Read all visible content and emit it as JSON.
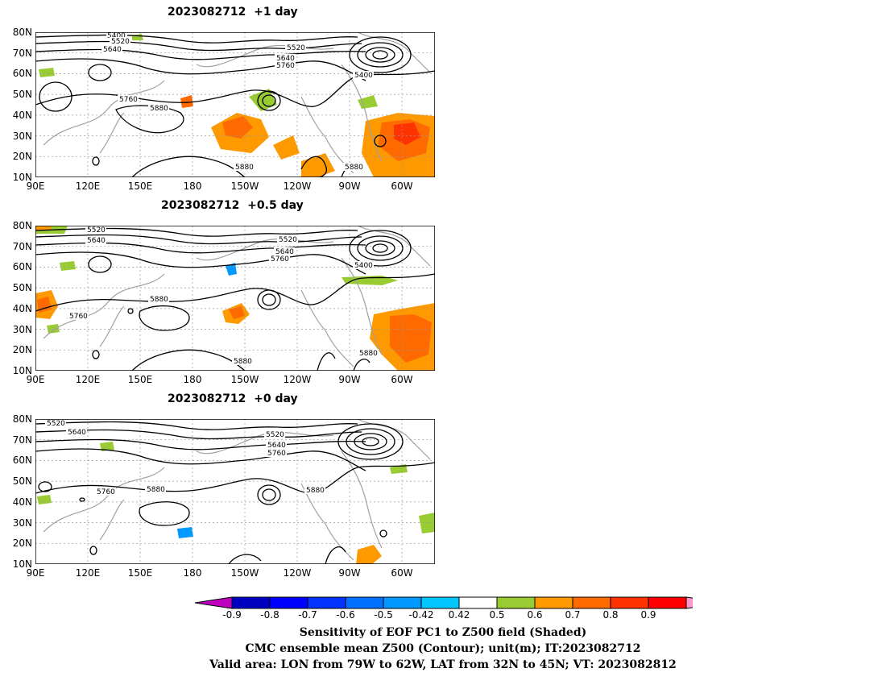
{
  "panels": [
    {
      "title": "2023082712  +1 day"
    },
    {
      "title": "2023082712  +0.5 day"
    },
    {
      "title": "2023082712  +0 day"
    }
  ],
  "axes": {
    "lat_ticks": [
      "80N",
      "70N",
      "60N",
      "50N",
      "40N",
      "30N",
      "20N",
      "10N"
    ],
    "lon_ticks": [
      "90E",
      "120E",
      "150E",
      "180",
      "150W",
      "120W",
      "90W",
      "60W"
    ]
  },
  "contour_labels": {
    "p0": [
      "5400",
      "5520",
      "5640",
      "5520",
      "5640",
      "5760",
      "5400",
      "5760",
      "5880",
      "5880",
      "5880"
    ],
    "p1": [
      "5520",
      "5640",
      "5520",
      "5640",
      "5760",
      "5400",
      "5880",
      "5760",
      "5880",
      "5880"
    ],
    "p2": [
      "5520",
      "5640",
      "5520",
      "5640",
      "5760",
      "5760",
      "5880",
      "5880"
    ]
  },
  "colorbar": {
    "labels": [
      "-0.9",
      "-0.8",
      "-0.7",
      "-0.6",
      "-0.5",
      "-0.42",
      "0.42",
      "0.5",
      "0.6",
      "0.7",
      "0.8",
      "0.9"
    ],
    "colors": [
      "#0000c0",
      "#0000ff",
      "#0033ff",
      "#0070ff",
      "#0099ff",
      "#00c8ff",
      "#ffffff",
      "#99cc33",
      "#ff9900",
      "#ff6a00",
      "#ff3300",
      "#ff0000"
    ],
    "left_triangle_color": "#c000c0",
    "right_triangle_color": "#ff99cc"
  },
  "caption": {
    "line1": "Sensitivity of EOF PC1 to Z500 field (Shaded)",
    "line2": "CMC ensemble mean Z500 (Contour); unit(m); IT:2023082712",
    "line3": "Valid area: LON from 79W to 62W, LAT from 32N to 45N; VT: 2023082812"
  }
}
